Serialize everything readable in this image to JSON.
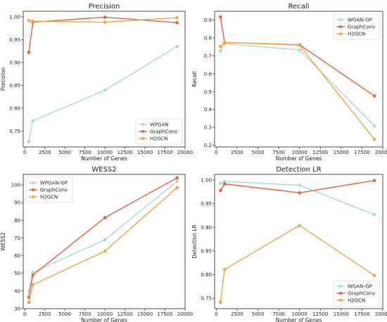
{
  "chart_data": [
    {
      "type": "line",
      "title": "Precision",
      "xlabel": "Number of Genes",
      "ylabel": "Precision",
      "xlim": [
        -200,
        20000
      ],
      "ylim": [
        0.715,
        1.012
      ],
      "xticks": [
        "0",
        "2500",
        "5000",
        "7500",
        "10000",
        "12500",
        "15000",
        "17500",
        "20000"
      ],
      "yticks": [
        "0.75",
        "0.80",
        "0.85",
        "0.90",
        "0.95",
        "1.00"
      ],
      "grid": false,
      "legend": "bottom-right",
      "series": [
        {
          "name": "WPGAN",
          "color": "#a8dccf",
          "x": [
            500,
            1000,
            10000,
            19000
          ],
          "y": [
            0.727,
            0.772,
            0.839,
            0.935
          ]
        },
        {
          "name": "GraphConv",
          "color": "#ef5d3f",
          "x": [
            500,
            1000,
            10000,
            19000
          ],
          "y": [
            0.922,
            0.988,
            0.999,
            0.987
          ]
        },
        {
          "name": "H2GCN",
          "color": "#f8a43c",
          "x": [
            500,
            1000,
            10000,
            19000
          ],
          "y": [
            0.992,
            0.99,
            0.988,
            0.998
          ]
        }
      ]
    },
    {
      "type": "line",
      "title": "Recall",
      "xlabel": "Number of Genes",
      "ylabel": "Recall",
      "xlim": [
        -200,
        20000
      ],
      "ylim": [
        0.19,
        0.95
      ],
      "xticks": [
        "0",
        "2500",
        "5000",
        "7500",
        "10000",
        "12500",
        "15000",
        "17500",
        "20000"
      ],
      "yticks": [
        "0.2",
        "0.3",
        "0.4",
        "0.5",
        "0.6",
        "0.7",
        "0.8",
        "0.9"
      ],
      "grid": false,
      "legend": "top-right",
      "series": [
        {
          "name": "WGAN-GP",
          "color": "#a8dccf",
          "x": [
            500,
            1000,
            10000,
            19000
          ],
          "y": [
            0.727,
            0.768,
            0.733,
            0.308
          ]
        },
        {
          "name": "GraphConv",
          "color": "#ef5d3f",
          "x": [
            500,
            1000,
            10000,
            19000
          ],
          "y": [
            0.918,
            0.775,
            0.762,
            0.475
          ]
        },
        {
          "name": "H2GCN",
          "color": "#f8a43c",
          "x": [
            500,
            1000,
            10000,
            19000
          ],
          "y": [
            0.752,
            0.775,
            0.76,
            0.232
          ]
        }
      ]
    },
    {
      "type": "line",
      "title": "WESS2",
      "xlabel": "Number of Genes",
      "ylabel": "WESS2",
      "xlim": [
        -200,
        20000
      ],
      "ylim": [
        30,
        106
      ],
      "xticks": [
        "0",
        "2500",
        "5000",
        "7500",
        "10000",
        "12500",
        "15000",
        "17500",
        "20000"
      ],
      "yticks": [
        "30",
        "40",
        "50",
        "60",
        "70",
        "80",
        "90",
        "100"
      ],
      "grid": false,
      "legend": "top-left",
      "series": [
        {
          "name": "WPGAN-GP",
          "color": "#a8dccf",
          "x": [
            500,
            1000,
            10000,
            19000
          ],
          "y": [
            40,
            50.5,
            69,
            102
          ]
        },
        {
          "name": "GraphConv",
          "color": "#ef5d3f",
          "x": [
            500,
            1000,
            10000,
            19000
          ],
          "y": [
            36.5,
            49,
            81.5,
            104
          ]
        },
        {
          "name": "H2GCN",
          "color": "#f8a43c",
          "x": [
            500,
            1000,
            10000,
            19000
          ],
          "y": [
            33.5,
            43.5,
            62.5,
            98.5
          ]
        }
      ]
    },
    {
      "type": "line",
      "title": "Detection LR",
      "xlabel": "Number of Genes",
      "ylabel": "Detection LR",
      "xlim": [
        -200,
        20000
      ],
      "ylim": [
        0.728,
        1.012
      ],
      "xticks": [
        "0",
        "2500",
        "5000",
        "7500",
        "10000",
        "12500",
        "15000",
        "17500",
        "20000"
      ],
      "yticks": [
        "0.75",
        "0.80",
        "0.85",
        "0.90",
        "0.95",
        "1.00"
      ],
      "grid": false,
      "legend": "bottom-right",
      "series": [
        {
          "name": "WGAN-GP",
          "color": "#a8dccf",
          "x": [
            500,
            1000,
            10000,
            19000
          ],
          "y": [
            0.993,
            0.997,
            0.989,
            0.927
          ]
        },
        {
          "name": "GraphConv",
          "color": "#ef5d3f",
          "x": [
            500,
            1000,
            10000,
            19000
          ],
          "y": [
            0.978,
            0.992,
            0.973,
            0.999
          ]
        },
        {
          "name": "H2GCN",
          "color": "#f8a43c",
          "x": [
            500,
            1000,
            10000,
            19000
          ],
          "y": [
            0.741,
            0.811,
            0.904,
            0.798
          ]
        }
      ]
    }
  ]
}
